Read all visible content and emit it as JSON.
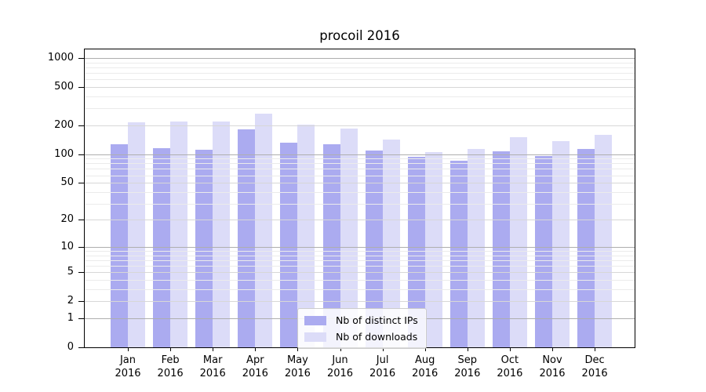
{
  "title": "procoil 2016",
  "chart_data": {
    "type": "bar",
    "scale": "log1p",
    "title": "procoil 2016",
    "xlabel": "",
    "ylabel": "",
    "categories": [
      "Jan",
      "Feb",
      "Mar",
      "Apr",
      "May",
      "Jun",
      "Jul",
      "Aug",
      "Sep",
      "Oct",
      "Nov",
      "Dec"
    ],
    "year_label": "2016",
    "series": [
      {
        "name": "Nb of distinct IPs",
        "color": "#ababf0",
        "values": [
          128,
          115,
          112,
          183,
          132,
          127,
          110,
          93,
          86,
          107,
          95,
          114
        ]
      },
      {
        "name": "Nb of downloads",
        "color": "#dcdcf8",
        "values": [
          215,
          220,
          218,
          266,
          203,
          185,
          143,
          106,
          113,
          150,
          137,
          158
        ]
      }
    ],
    "yticks": [
      1000,
      500,
      200,
      100,
      50,
      20,
      10,
      5,
      2,
      1,
      0
    ],
    "ylim": [
      0,
      1230
    ],
    "grid": true,
    "legend_position": "bottom-center"
  },
  "colors": {
    "grid_major": "#aeaeae",
    "grid_mid": "#d7d7d7",
    "grid_minor": "#ebebeb",
    "axis": "#000000",
    "background": "#ffffff"
  }
}
